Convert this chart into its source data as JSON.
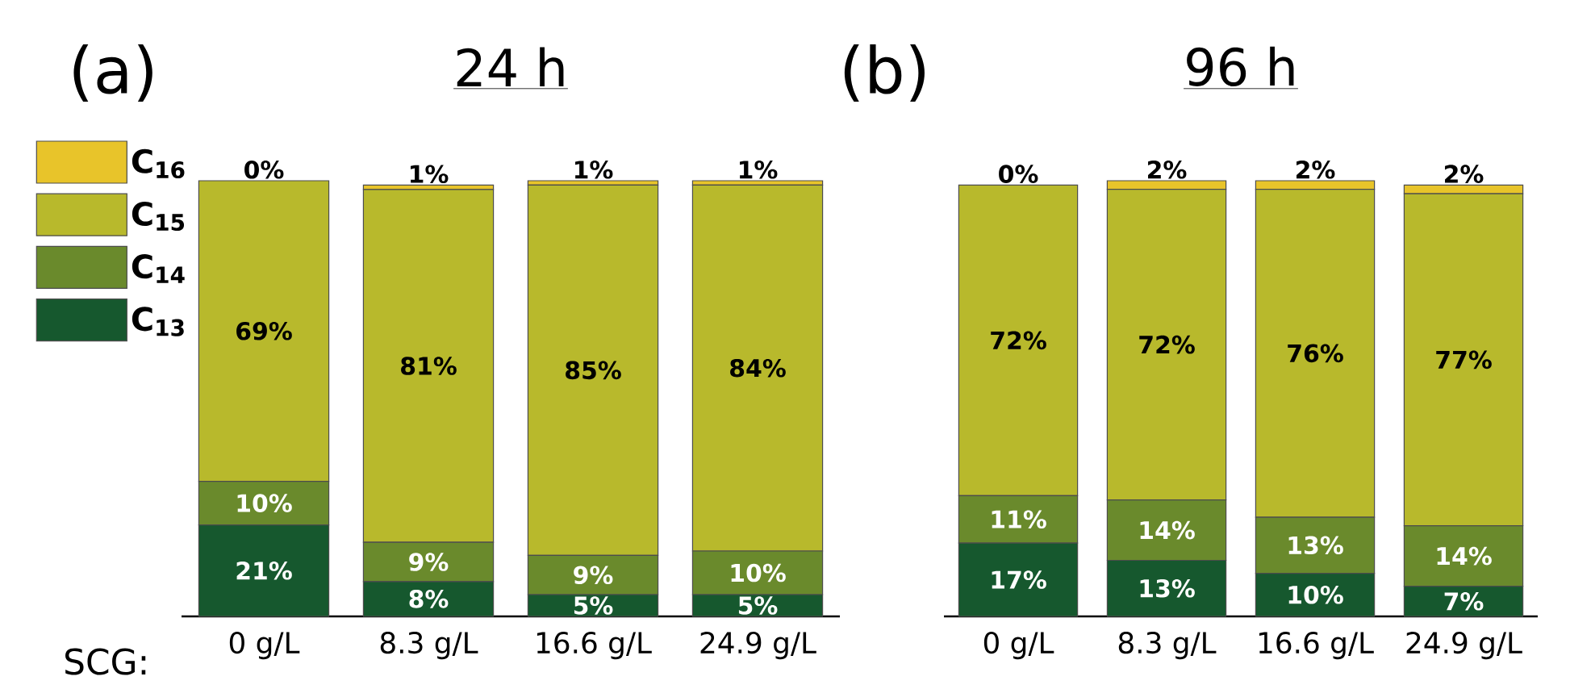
{
  "chart_data": [
    {
      "type": "bar",
      "title": "24 h",
      "xlabel": "SCG:",
      "annotations": [
        "(a)"
      ],
      "stacked": true,
      "legend": "left",
      "tick_labels": "x",
      "categories": [
        "0 g/L",
        "8.3 g/L",
        "16.6 g/L",
        "24.9 g/L"
      ],
      "series": [
        {
          "name": "C$_{13}$",
          "color": "#16582e",
          "values": [
            21,
            8,
            5,
            5
          ],
          "value_labels": [
            "21%",
            "8%",
            "5%",
            "5%"
          ]
        },
        {
          "name": "C$_{14}$",
          "color": "#6a8a2c",
          "values": [
            10,
            9,
            9,
            10
          ],
          "value_labels": [
            "10%",
            "9%",
            "9%",
            "10%"
          ]
        },
        {
          "name": "C$_{15}$",
          "color": "#b8b92c",
          "values": [
            69,
            81,
            85,
            84
          ],
          "value_labels": [
            "69%",
            "81%",
            "85%",
            "84%"
          ]
        },
        {
          "name": "C$_{16}$",
          "color": "#e8c42a",
          "values": [
            0,
            1,
            1,
            1
          ],
          "value_labels": [
            "0%",
            "1%",
            "1%",
            "1%"
          ]
        }
      ]
    },
    {
      "type": "bar",
      "title": "96 h",
      "annotations": [
        "(b)"
      ],
      "stacked": true,
      "tick_labels": "x",
      "categories": [
        "0 g/L",
        "8.3 g/L",
        "16.6 g/L",
        "24.9 g/L"
      ],
      "series": [
        {
          "color": "#16582e",
          "values": [
            17,
            13,
            10,
            7
          ],
          "value_labels": [
            "17%",
            "13%",
            "10%",
            "7%"
          ]
        },
        {
          "color": "#6a8a2c",
          "values": [
            11,
            14,
            13,
            14
          ],
          "value_labels": [
            "11%",
            "14%",
            "13%",
            "14%"
          ]
        },
        {
          "color": "#b8b92c",
          "values": [
            72,
            72,
            76,
            77
          ],
          "value_labels": [
            "72%",
            "72%",
            "76%",
            "77%"
          ]
        },
        {
          "color": "#e8c42a",
          "values": [
            0,
            2,
            2,
            2
          ],
          "value_labels": [
            "0%",
            "2%",
            "2%",
            "2%"
          ]
        }
      ]
    }
  ]
}
